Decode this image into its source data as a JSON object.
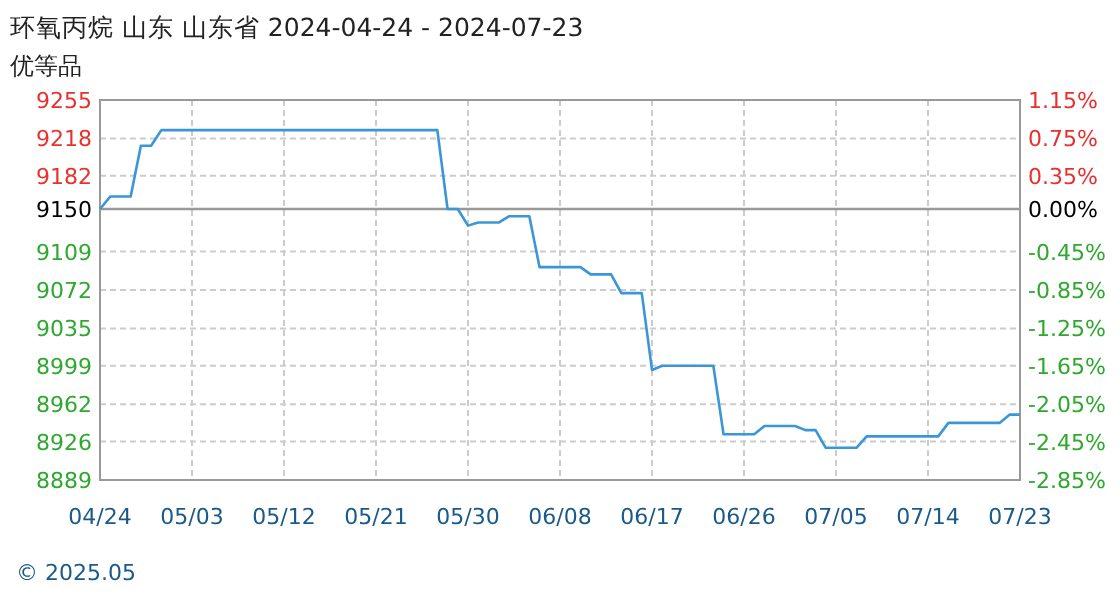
{
  "chart_data": {
    "type": "line",
    "title": "环氧丙烷 山东 山东省 2024-04-24 - 2024-07-23",
    "subtitle": "优等品",
    "x": [
      "2024-04-24",
      "2024-04-25",
      "2024-04-27",
      "2024-04-28",
      "2024-04-29",
      "2024-04-30",
      "2024-05-27",
      "2024-05-28",
      "2024-05-29",
      "2024-05-30",
      "2024-05-31",
      "2024-06-02",
      "2024-06-03",
      "2024-06-05",
      "2024-06-06",
      "2024-06-10",
      "2024-06-11",
      "2024-06-13",
      "2024-06-14",
      "2024-06-16",
      "2024-06-17",
      "2024-06-18",
      "2024-06-23",
      "2024-06-24",
      "2024-06-27",
      "2024-06-28",
      "2024-07-01",
      "2024-07-02",
      "2024-07-03",
      "2024-07-04",
      "2024-07-07",
      "2024-07-08",
      "2024-07-15",
      "2024-07-16",
      "2024-07-21",
      "2024-07-22",
      "2024-07-23"
    ],
    "series": [
      {
        "color": "#3a96d6",
        "values": [
          9150,
          9162,
          9162,
          9211,
          9211,
          9226,
          9226,
          9150,
          9150,
          9134,
          9137,
          9137,
          9143,
          9143,
          9094,
          9094,
          9087,
          9087,
          9069,
          9069,
          8995,
          8999,
          8999,
          8933,
          8933,
          8941,
          8941,
          8937,
          8937,
          8920,
          8920,
          8931,
          8931,
          8944,
          8944,
          8952,
          8952
        ]
      }
    ],
    "xlim": [
      "2024-04-24",
      "2024-07-23"
    ],
    "xticks": [
      {
        "value": "2024-04-24",
        "label": "04/24"
      },
      {
        "value": "2024-05-03",
        "label": "05/03"
      },
      {
        "value": "2024-05-12",
        "label": "05/12"
      },
      {
        "value": "2024-05-21",
        "label": "05/21"
      },
      {
        "value": "2024-05-30",
        "label": "05/30"
      },
      {
        "value": "2024-06-08",
        "label": "06/08"
      },
      {
        "value": "2024-06-17",
        "label": "06/17"
      },
      {
        "value": "2024-06-26",
        "label": "06/26"
      },
      {
        "value": "2024-07-05",
        "label": "07/05"
      },
      {
        "value": "2024-07-14",
        "label": "07/14"
      },
      {
        "value": "2024-07-23",
        "label": "07/23"
      }
    ],
    "ylim": [
      8889,
      9255
    ],
    "yticks": [
      9255,
      9218,
      9182,
      9150,
      9109,
      9072,
      9035,
      8999,
      8962,
      8926,
      8889
    ],
    "y2lim": [
      -2.85,
      1.15
    ],
    "y2ticks": [
      {
        "value": 1.15,
        "label": "1.15%"
      },
      {
        "value": 0.75,
        "label": "0.75%"
      },
      {
        "value": 0.35,
        "label": "0.35%"
      },
      {
        "value": 0,
        "label": "0.00%"
      },
      {
        "value": -0.45,
        "label": "-0.45%"
      },
      {
        "value": -0.85,
        "label": "-0.85%"
      },
      {
        "value": -1.25,
        "label": "-1.25%"
      },
      {
        "value": -1.65,
        "label": "-1.65%"
      },
      {
        "value": -2.05,
        "label": "-2.05%"
      },
      {
        "value": -2.45,
        "label": "-2.45%"
      },
      {
        "value": -2.85,
        "label": "-2.85%"
      }
    ],
    "grid": true,
    "ref_lines": [
      {
        "axis": "y",
        "value": 9150,
        "color": "#999999"
      }
    ],
    "annotations": [
      "© 2025.05"
    ]
  }
}
